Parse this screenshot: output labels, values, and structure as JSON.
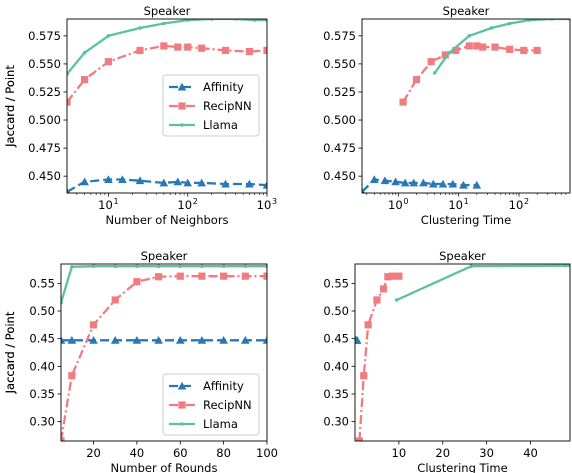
{
  "colors": {
    "affinity": "#2878b5",
    "recipnn": "#f07c80",
    "llama": "#5cc29c"
  },
  "chart_data": [
    {
      "type": "line",
      "title": "Speaker",
      "xlabel": "Number of Neighbors",
      "ylabel": "Jaccard / Point",
      "xscale": "log",
      "xlim": [
        3,
        1000
      ],
      "ylim": [
        0.435,
        0.59
      ],
      "xticks": [
        {
          "v": 10,
          "base": "10",
          "exp": "1"
        },
        {
          "v": 100,
          "base": "10",
          "exp": "2"
        },
        {
          "v": 1000,
          "base": "10",
          "exp": "3"
        }
      ],
      "yticks": [
        {
          "v": 0.45,
          "t": "0.450"
        },
        {
          "v": 0.475,
          "t": "0.475"
        },
        {
          "v": 0.5,
          "t": "0.500"
        },
        {
          "v": 0.525,
          "t": "0.525"
        },
        {
          "v": 0.55,
          "t": "0.550"
        },
        {
          "v": 0.575,
          "t": "0.575"
        }
      ],
      "legend": {
        "position": "center-right",
        "entries": [
          "Affinity",
          "RecipNN",
          "Llama"
        ]
      },
      "series": [
        {
          "name": "Affinity",
          "style": "affinity",
          "x": [
            3,
            5,
            10,
            15,
            25,
            50,
            75,
            100,
            150,
            300,
            600,
            1000
          ],
          "y": [
            0.436,
            0.445,
            0.447,
            0.447,
            0.446,
            0.444,
            0.445,
            0.444,
            0.444,
            0.443,
            0.443,
            0.442
          ]
        },
        {
          "name": "RecipNN",
          "style": "recipnn",
          "x": [
            3,
            5,
            10,
            25,
            50,
            75,
            100,
            150,
            300,
            600,
            1000
          ],
          "y": [
            0.516,
            0.536,
            0.552,
            0.562,
            0.566,
            0.565,
            0.565,
            0.564,
            0.562,
            0.561,
            0.562
          ]
        },
        {
          "name": "Llama",
          "style": "llama",
          "x": [
            3,
            5,
            10,
            25,
            50,
            100,
            200,
            400,
            700,
            1000
          ],
          "y": [
            0.541,
            0.56,
            0.575,
            0.582,
            0.586,
            0.589,
            0.59,
            0.59,
            0.589,
            0.589
          ]
        }
      ]
    },
    {
      "type": "line",
      "title": "Speaker",
      "xlabel": "Clustering Time",
      "ylabel": "Jaccard / Point",
      "xscale": "log",
      "xlim": [
        0.25,
        700
      ],
      "ylim": [
        0.435,
        0.59
      ],
      "xticks": [
        {
          "v": 1,
          "base": "10",
          "exp": "0"
        },
        {
          "v": 10,
          "base": "10",
          "exp": "1"
        },
        {
          "v": 100,
          "base": "10",
          "exp": "2"
        }
      ],
      "yticks": [
        {
          "v": 0.45,
          "t": "0.450"
        },
        {
          "v": 0.475,
          "t": "0.475"
        },
        {
          "v": 0.5,
          "t": "0.500"
        },
        {
          "v": 0.525,
          "t": "0.525"
        },
        {
          "v": 0.55,
          "t": "0.550"
        },
        {
          "v": 0.575,
          "t": "0.575"
        }
      ],
      "legend": null,
      "series": [
        {
          "name": "Affinity",
          "style": "affinity",
          "x": [
            0.25,
            0.4,
            0.6,
            0.9,
            1.3,
            1.8,
            2.6,
            3.8,
            5.5,
            8,
            12,
            20
          ],
          "y": [
            0.436,
            0.447,
            0.446,
            0.445,
            0.444,
            0.444,
            0.444,
            0.443,
            0.443,
            0.443,
            0.442,
            0.442
          ]
        },
        {
          "name": "RecipNN",
          "style": "recipnn",
          "x": [
            1.2,
            2,
            3.5,
            6,
            9,
            15,
            20,
            25,
            40,
            70,
            120,
            200
          ],
          "y": [
            0.516,
            0.536,
            0.552,
            0.558,
            0.562,
            0.566,
            0.566,
            0.565,
            0.565,
            0.563,
            0.562,
            0.562
          ]
        },
        {
          "name": "Llama",
          "style": "llama",
          "x": [
            4,
            7,
            15,
            35,
            70,
            150,
            350,
            700
          ],
          "y": [
            0.542,
            0.56,
            0.575,
            0.582,
            0.586,
            0.589,
            0.59,
            0.59
          ]
        }
      ]
    },
    {
      "type": "line",
      "title": "Speaker",
      "xlabel": "Number of Rounds",
      "ylabel": "Jaccard / Point",
      "xscale": "linear",
      "xlim": [
        5,
        100
      ],
      "ylim": [
        0.265,
        0.585
      ],
      "xticks": [
        {
          "v": 20,
          "t": "20"
        },
        {
          "v": 40,
          "t": "40"
        },
        {
          "v": 60,
          "t": "60"
        },
        {
          "v": 80,
          "t": "80"
        },
        {
          "v": 100,
          "t": "100"
        }
      ],
      "yticks": [
        {
          "v": 0.3,
          "t": "0.30"
        },
        {
          "v": 0.35,
          "t": "0.35"
        },
        {
          "v": 0.4,
          "t": "0.40"
        },
        {
          "v": 0.45,
          "t": "0.45"
        },
        {
          "v": 0.5,
          "t": "0.50"
        },
        {
          "v": 0.55,
          "t": "0.55"
        }
      ],
      "legend": {
        "position": "lower-right",
        "entries": [
          "Affinity",
          "RecipNN",
          "Llama"
        ]
      },
      "series": [
        {
          "name": "Affinity",
          "style": "affinity",
          "x": [
            5,
            10,
            20,
            30,
            40,
            50,
            60,
            70,
            80,
            90,
            100
          ],
          "y": [
            0.447,
            0.447,
            0.447,
            0.447,
            0.447,
            0.447,
            0.447,
            0.447,
            0.447,
            0.447,
            0.447
          ]
        },
        {
          "name": "RecipNN",
          "style": "recipnn",
          "x": [
            5,
            10,
            20,
            30,
            40,
            50,
            60,
            70,
            80,
            90,
            100
          ],
          "y": [
            0.265,
            0.383,
            0.475,
            0.52,
            0.553,
            0.562,
            0.563,
            0.563,
            0.563,
            0.563,
            0.563
          ]
        },
        {
          "name": "Llama",
          "style": "llama",
          "x": [
            5,
            10,
            20,
            30,
            40,
            50,
            60,
            70,
            80,
            90,
            100
          ],
          "y": [
            0.515,
            0.58,
            0.581,
            0.581,
            0.581,
            0.581,
            0.581,
            0.581,
            0.581,
            0.581,
            0.581
          ]
        }
      ]
    },
    {
      "type": "line",
      "title": "Speaker",
      "xlabel": "Clustering Time",
      "ylabel": "Jaccard / Point",
      "xscale": "linear",
      "xlim": [
        0,
        49
      ],
      "ylim": [
        0.265,
        0.585
      ],
      "xticks": [
        {
          "v": 10,
          "t": "10"
        },
        {
          "v": 20,
          "t": "20"
        },
        {
          "v": 30,
          "t": "30"
        },
        {
          "v": 40,
          "t": "40"
        }
      ],
      "yticks": [
        {
          "v": 0.3,
          "t": "0.30"
        },
        {
          "v": 0.35,
          "t": "0.35"
        },
        {
          "v": 0.4,
          "t": "0.40"
        },
        {
          "v": 0.45,
          "t": "0.45"
        },
        {
          "v": 0.5,
          "t": "0.50"
        },
        {
          "v": 0.55,
          "t": "0.55"
        }
      ],
      "legend": null,
      "series": [
        {
          "name": "Affinity",
          "style": "affinity",
          "x": [
            0.1,
            0.3,
            0.5
          ],
          "y": [
            0.447,
            0.447,
            0.447
          ]
        },
        {
          "name": "RecipNN",
          "style": "recipnn",
          "x": [
            1,
            2,
            3,
            5,
            6.5,
            7.5,
            8.5,
            10
          ],
          "y": [
            0.265,
            0.383,
            0.475,
            0.52,
            0.54,
            0.562,
            0.563,
            0.563
          ]
        },
        {
          "name": "Llama",
          "style": "llama",
          "x": [
            9.5,
            26.5,
            48,
            49
          ],
          "y": [
            0.52,
            0.581,
            0.582,
            0.582
          ]
        }
      ]
    }
  ]
}
